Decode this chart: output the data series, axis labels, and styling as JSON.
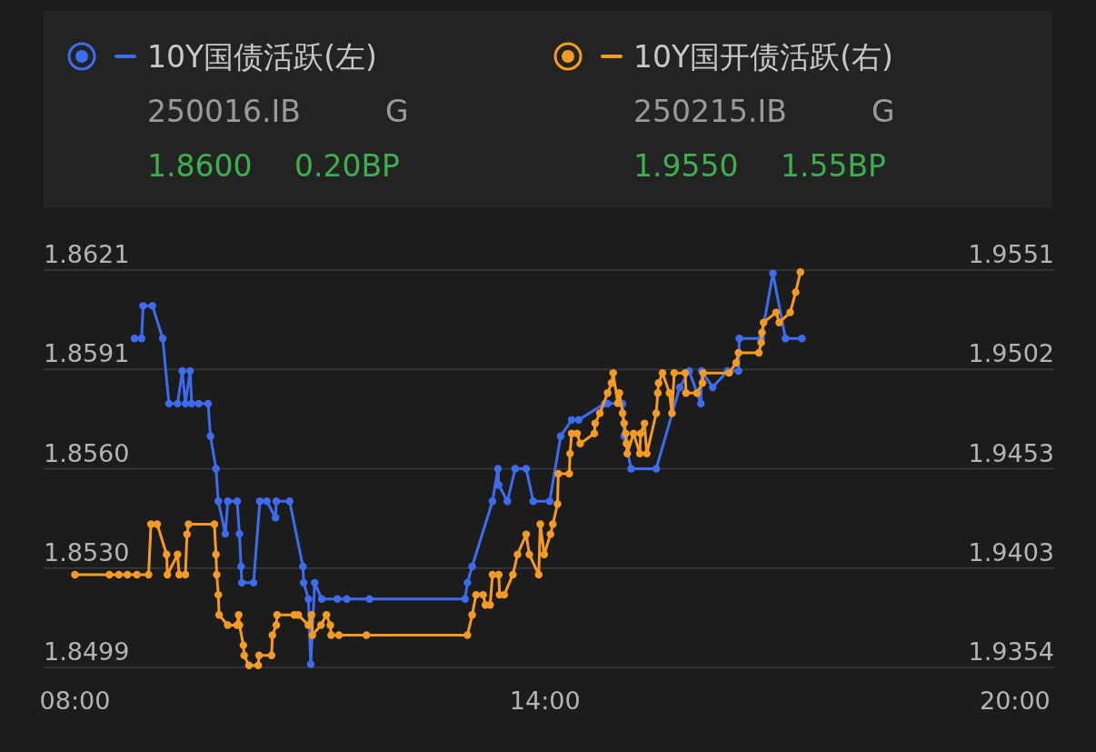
{
  "chart_data": {
    "type": "line",
    "marker": "circle",
    "line_style": "solid",
    "grid": "y",
    "legend": "top",
    "xlim": [
      7.6,
      20.5
    ],
    "xticks": [
      {
        "value": 8,
        "label": "08:00"
      },
      {
        "value": 14,
        "label": "14:00"
      },
      {
        "value": 20,
        "label": "20:00"
      }
    ],
    "ylim": [
      1.8499,
      1.8621
    ],
    "yticks": [
      1.8499,
      {
        "value": 1.85295,
        "label": "1.8530"
      },
      {
        "value": 1.856,
        "label": "1.8560"
      },
      {
        "value": 1.85905,
        "label": "1.8591"
      },
      1.8621
    ],
    "y2lim": [
      1.9354,
      1.9551
    ],
    "y2ticks": [
      1.9354,
      {
        "value": 1.940325,
        "label": "1.9403"
      },
      {
        "value": 1.94525,
        "label": "1.9453"
      },
      {
        "value": 1.950175,
        "label": "1.9502"
      },
      1.9551
    ],
    "annotations": [
      "250016.IB",
      "G",
      "1.8600",
      "0.20BP",
      "250215.IB",
      "G",
      "1.9550",
      "1.55BP"
    ],
    "series": [
      {
        "name": "10Y国债活跃(左)",
        "color": "#3d6cf0",
        "x": [
          8.76,
          8.85,
          8.87,
          8.99,
          9.12,
          9.2,
          9.31,
          9.37,
          9.41,
          9.47,
          9.49,
          9.58,
          9.7,
          9.73,
          9.8,
          9.83,
          9.92,
          9.95,
          10.07,
          10.1,
          10.12,
          10.13,
          10.28,
          10.36,
          10.45,
          10.56,
          10.57,
          10.74,
          10.91,
          10.92,
          10.98,
          11.01,
          11.06,
          11.15,
          11.35,
          11.47,
          11.76,
          12.98,
          13.01,
          13.07,
          13.33,
          13.4,
          13.41,
          13.52,
          13.62,
          13.76,
          13.85,
          14.06,
          14.2,
          14.34,
          14.43,
          14.76,
          14.8,
          14.99,
          15.01,
          15.1,
          15.42,
          15.72,
          15.84,
          15.99,
          16.0,
          16.14,
          16.33,
          16.47,
          16.48,
          16.76,
          16.91,
          17.07,
          17.28
        ],
        "values": [
          1.86,
          1.86,
          1.861,
          1.861,
          1.86,
          1.858,
          1.858,
          1.859,
          1.858,
          1.859,
          1.858,
          1.858,
          1.858,
          1.857,
          1.856,
          1.855,
          1.854,
          1.855,
          1.855,
          1.854,
          1.853,
          1.8525,
          1.8525,
          1.855,
          1.855,
          1.8545,
          1.855,
          1.855,
          1.853,
          1.8525,
          1.852,
          1.85,
          1.8525,
          1.852,
          1.852,
          1.852,
          1.852,
          1.852,
          1.8525,
          1.853,
          1.855,
          1.856,
          1.8555,
          1.855,
          1.856,
          1.856,
          1.855,
          1.855,
          1.857,
          1.8575,
          1.8575,
          1.858,
          1.858,
          1.858,
          1.857,
          1.856,
          1.856,
          1.8585,
          1.859,
          1.858,
          1.859,
          1.8585,
          1.859,
          1.859,
          1.86,
          1.86,
          1.862,
          1.86,
          1.86
        ]
      },
      {
        "name": "10Y国开债活跃(右)",
        "color": "#f59a23",
        "axis": "y2",
        "x": [
          8.0,
          8.44,
          8.56,
          8.67,
          8.79,
          8.94,
          8.97,
          9.05,
          9.17,
          9.18,
          9.31,
          9.33,
          9.41,
          9.43,
          9.45,
          9.78,
          9.8,
          9.81,
          9.83,
          9.84,
          9.95,
          10.07,
          10.09,
          10.1,
          10.15,
          10.16,
          10.22,
          10.34,
          10.35,
          10.51,
          10.52,
          10.57,
          10.58,
          10.8,
          10.85,
          10.98,
          11.02,
          11.03,
          11.14,
          11.21,
          11.26,
          11.27,
          11.37,
          11.72,
          13.01,
          13.07,
          13.12,
          13.21,
          13.24,
          13.3,
          13.33,
          13.41,
          13.42,
          13.48,
          13.59,
          13.65,
          13.76,
          13.8,
          13.92,
          13.94,
          13.99,
          14.07,
          14.1,
          14.16,
          14.17,
          14.31,
          14.32,
          14.34,
          14.41,
          14.45,
          14.63,
          14.64,
          14.7,
          14.8,
          14.85,
          14.87,
          14.93,
          14.95,
          14.99,
          15.01,
          15.03,
          15.04,
          15.05,
          15.13,
          15.21,
          15.22,
          15.27,
          15.3,
          15.42,
          15.44,
          15.45,
          15.5,
          15.59,
          15.62,
          15.65,
          15.79,
          15.8,
          15.94,
          16.01,
          16.02,
          16.35,
          16.44,
          16.47,
          16.73,
          16.76,
          16.77,
          16.79,
          16.95,
          16.99,
          17.13,
          17.2,
          17.26
        ],
        "values": [
          1.94,
          1.94,
          1.94,
          1.94,
          1.94,
          1.94,
          1.9425,
          1.9425,
          1.941,
          1.94,
          1.941,
          1.94,
          1.94,
          1.942,
          1.9425,
          1.9425,
          1.941,
          1.94,
          1.939,
          1.938,
          1.9375,
          1.9375,
          1.938,
          1.9375,
          1.9365,
          1.936,
          1.9355,
          1.9355,
          1.936,
          1.936,
          1.937,
          1.9375,
          1.938,
          1.938,
          1.938,
          1.9375,
          1.938,
          1.937,
          1.9375,
          1.938,
          1.9375,
          1.937,
          1.937,
          1.937,
          1.937,
          1.938,
          1.939,
          1.939,
          1.9385,
          1.9385,
          1.94,
          1.94,
          1.939,
          1.939,
          1.94,
          1.941,
          1.942,
          1.941,
          1.94,
          1.9425,
          1.941,
          1.942,
          1.9425,
          1.9435,
          1.945,
          1.945,
          1.946,
          1.947,
          1.947,
          1.9465,
          1.947,
          1.9475,
          1.948,
          1.949,
          1.9495,
          1.95,
          1.9485,
          1.949,
          1.948,
          1.9475,
          1.947,
          1.9465,
          1.946,
          1.947,
          1.946,
          1.947,
          1.9475,
          1.946,
          1.948,
          1.949,
          1.9495,
          1.95,
          1.949,
          1.948,
          1.95,
          1.95,
          1.949,
          1.949,
          1.9495,
          1.95,
          1.95,
          1.9505,
          1.951,
          1.951,
          1.9515,
          1.952,
          1.9525,
          1.953,
          1.9525,
          1.953,
          1.954,
          1.955
        ]
      }
    ]
  }
}
